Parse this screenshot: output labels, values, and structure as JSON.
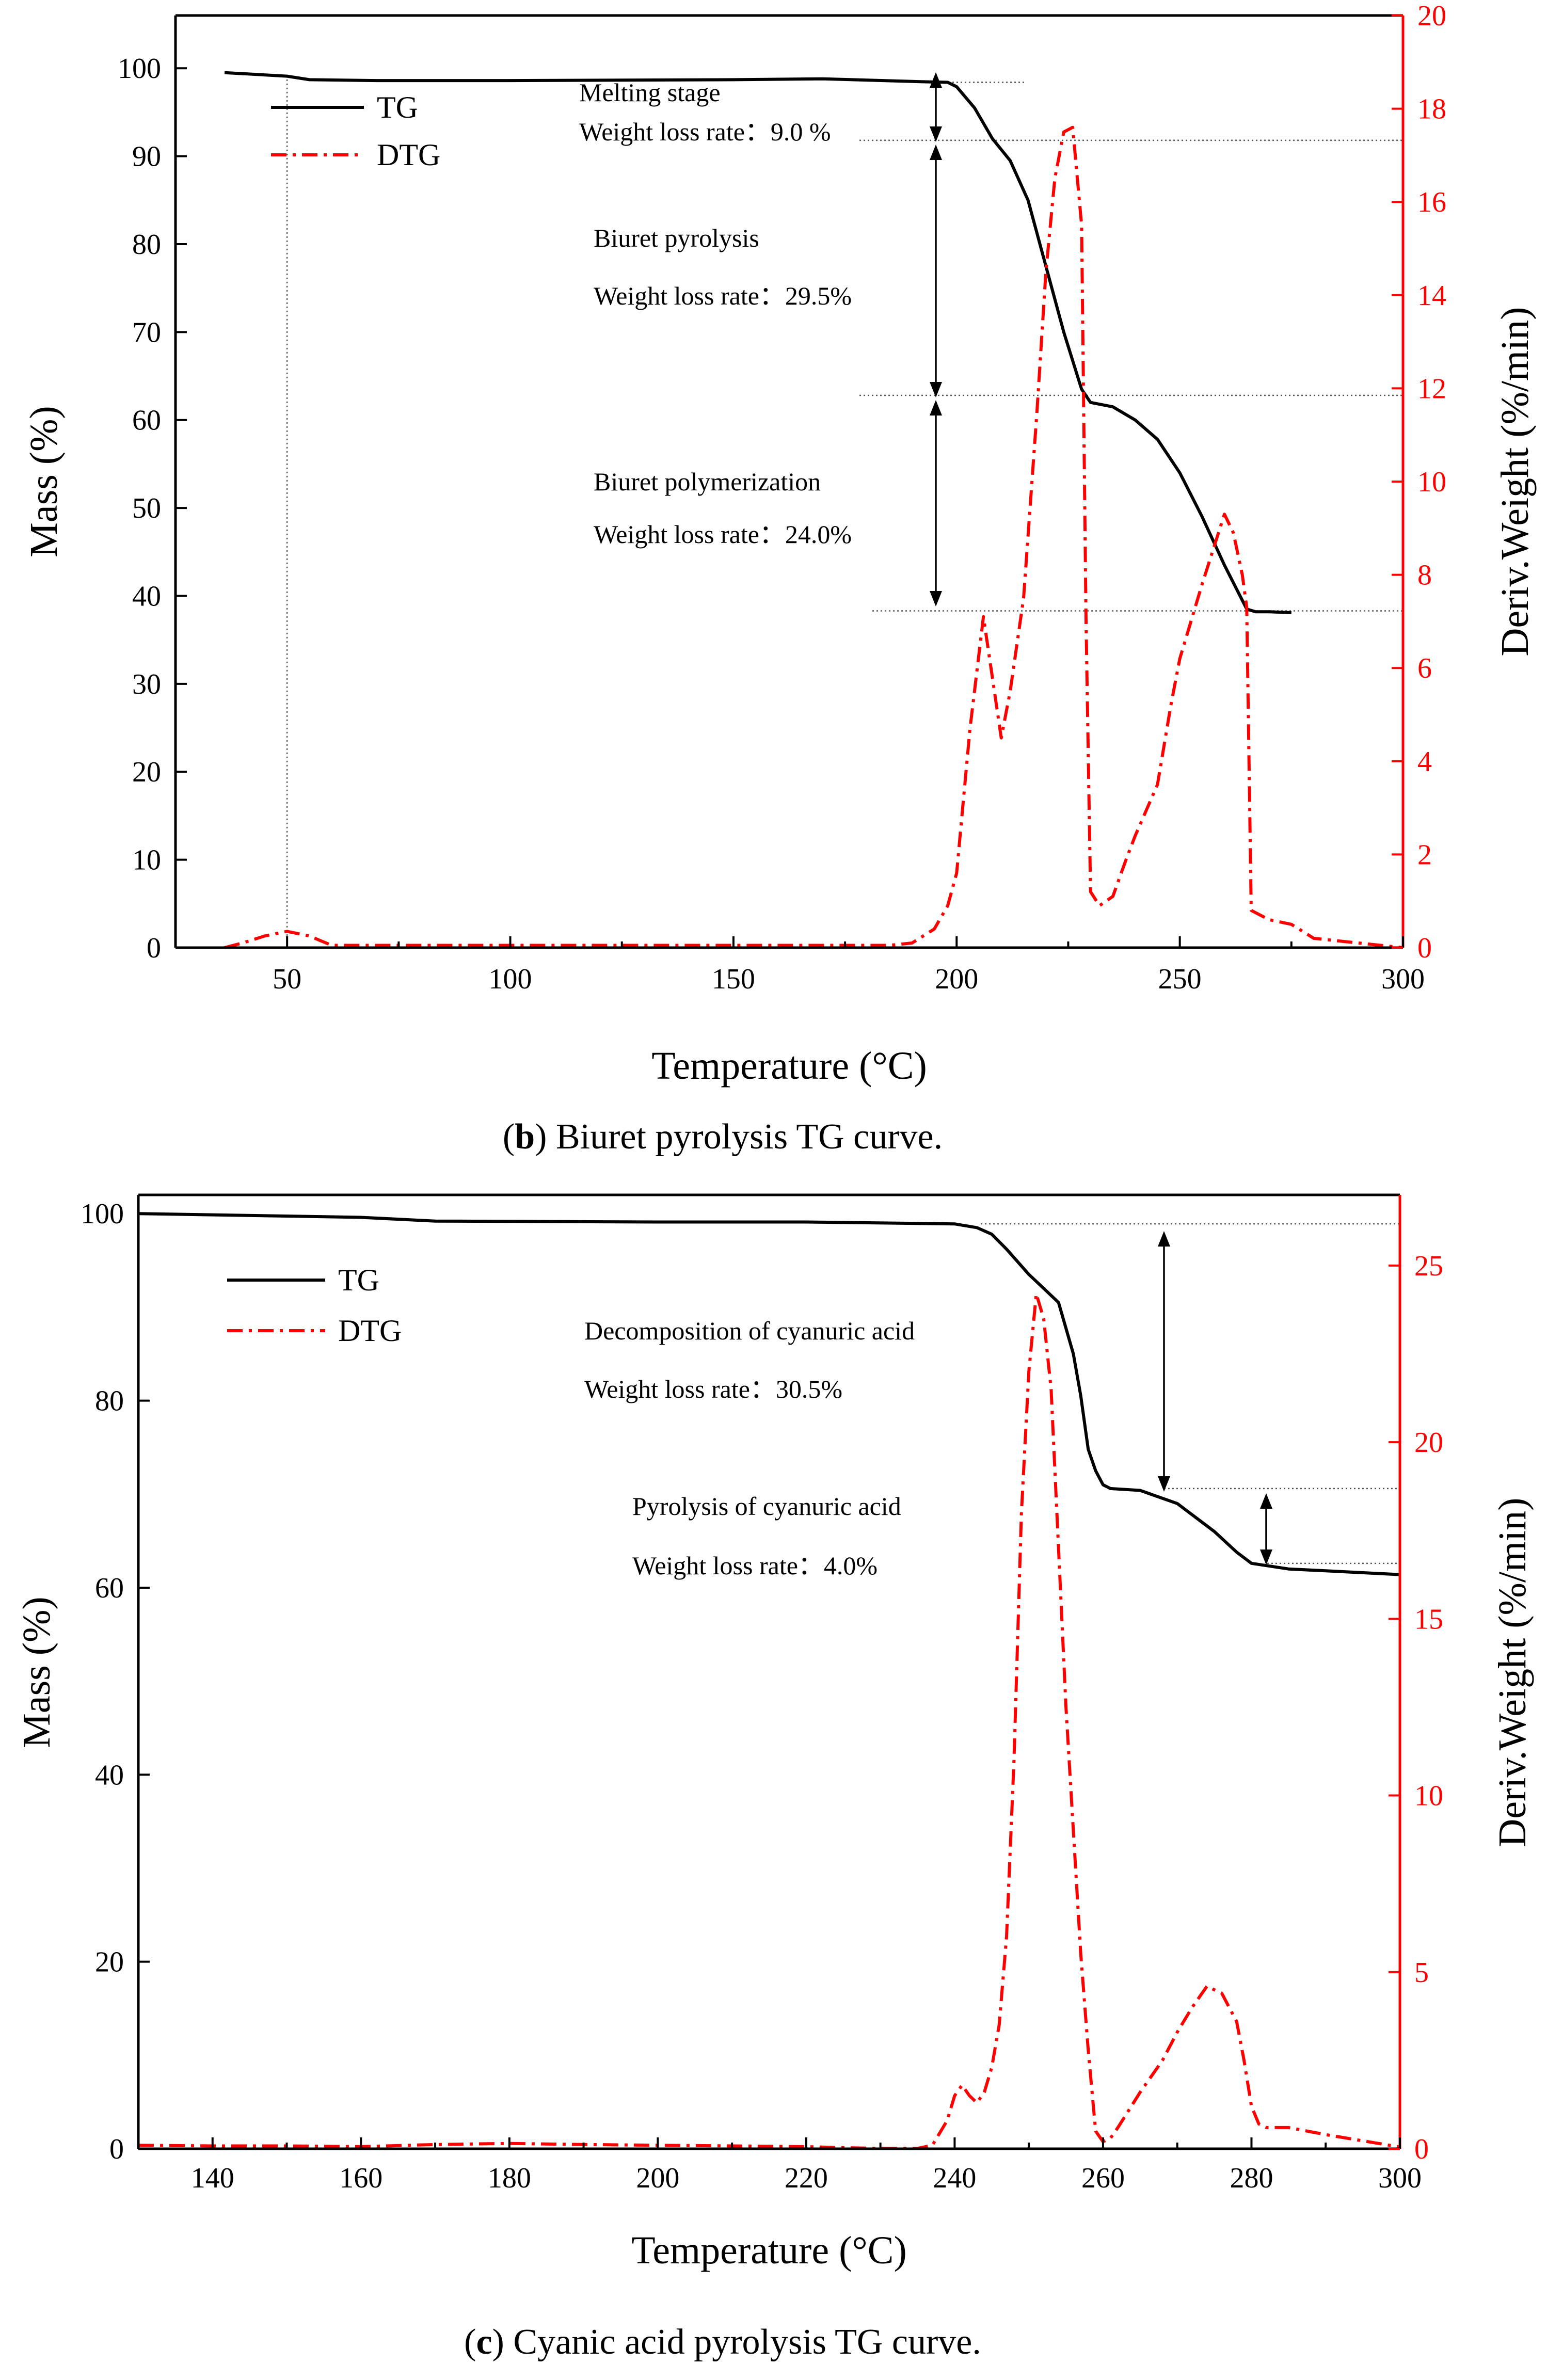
{
  "chart_data": [
    {
      "type": "line",
      "panel": "b",
      "caption_label": "b",
      "caption_text": ") Biuret pyrolysis TG curve.",
      "xlabel": "Temperature (°C)",
      "ylabel": "Mass (%)",
      "y2label": "Deriv.Weight (%/min)",
      "xlim": [
        25,
        300
      ],
      "ylim": [
        0,
        106
      ],
      "y2lim": [
        0,
        20
      ],
      "xticks": [
        50,
        100,
        150,
        200,
        250,
        300
      ],
      "yticks": [
        0,
        10,
        20,
        30,
        40,
        50,
        60,
        70,
        80,
        90,
        100
      ],
      "y2ticks": [
        0,
        2,
        4,
        6,
        8,
        10,
        12,
        14,
        16,
        18,
        20
      ],
      "legend": [
        "TG",
        "DTG"
      ],
      "series": [
        {
          "name": "TG",
          "axis": "left",
          "color": "#000000",
          "x": [
            36,
            50,
            55,
            70,
            100,
            150,
            170,
            190,
            198,
            200,
            204,
            208,
            212,
            216,
            220,
            224,
            228,
            230,
            235,
            240,
            245,
            250,
            255,
            260,
            265,
            267,
            270,
            275
          ],
          "y": [
            99.5,
            99.1,
            98.7,
            98.6,
            98.6,
            98.7,
            98.8,
            98.5,
            98.4,
            97.9,
            95.5,
            92,
            89.5,
            85,
            77.5,
            70,
            63.5,
            62,
            61.5,
            60,
            57.8,
            54,
            49,
            43.5,
            38.5,
            38.2,
            38.2,
            38.1
          ]
        },
        {
          "name": "DTG",
          "axis": "right",
          "color": "#ff0000",
          "x": [
            36,
            40,
            45,
            50,
            55,
            60,
            80,
            100,
            150,
            185,
            190,
            195,
            198,
            200,
            203,
            206,
            208,
            210,
            212,
            215,
            218,
            220,
            222,
            224,
            226,
            228,
            229,
            230,
            232,
            235,
            238,
            240,
            245,
            248,
            250,
            255,
            258,
            260,
            262,
            264,
            265,
            266,
            268,
            270,
            275,
            280,
            290,
            300
          ],
          "y": [
            0,
            0.1,
            0.25,
            0.35,
            0.25,
            0.05,
            0.05,
            0.05,
            0.05,
            0.05,
            0.1,
            0.4,
            0.9,
            1.6,
            4.7,
            7.1,
            5.8,
            4.5,
            5.5,
            7.5,
            11.5,
            14.5,
            16.5,
            17.5,
            17.6,
            15.5,
            7,
            1.2,
            0.9,
            1.1,
            1.9,
            2.4,
            3.5,
            5.2,
            6.2,
            7.8,
            8.7,
            9.3,
            8.9,
            8.0,
            7.3,
            0.8,
            0.7,
            0.6,
            0.5,
            0.2,
            0.1,
            0
          ]
        }
      ],
      "annotations": [
        {
          "title": "Melting stage",
          "rate": "Weight loss rate：9.0 %"
        },
        {
          "title": "Biuret pyrolysis",
          "rate": "Weight loss rate：29.5%"
        },
        {
          "title": "Biuret polymerization",
          "rate": "Weight loss rate：24.0%"
        }
      ]
    },
    {
      "type": "line",
      "panel": "c",
      "caption_label": "c",
      "caption_text": ") Cyanic acid pyrolysis TG curve.",
      "xlabel": "Temperature (°C)",
      "ylabel": "Mass (%)",
      "y2label": "Deriv.Weight (%/min)",
      "xlim": [
        130,
        300
      ],
      "ylim": [
        0,
        102
      ],
      "y2lim": [
        0,
        27
      ],
      "xticks": [
        140,
        160,
        180,
        200,
        220,
        240,
        260,
        280,
        300
      ],
      "yticks": [
        0,
        20,
        40,
        60,
        80,
        100
      ],
      "y2ticks": [
        0,
        5,
        10,
        15,
        20,
        25
      ],
      "legend": [
        "TG",
        "DTG"
      ],
      "series": [
        {
          "name": "TG",
          "axis": "left",
          "color": "#000000",
          "x": [
            130,
            160,
            170,
            200,
            220,
            240,
            243,
            245,
            247,
            250,
            254,
            256,
            257,
            258,
            259,
            260,
            261,
            265,
            270,
            275,
            278,
            280,
            285,
            290,
            300
          ],
          "y": [
            100,
            99.6,
            99.2,
            99.1,
            99.1,
            98.9,
            98.5,
            97.8,
            96.2,
            93.5,
            90.5,
            85,
            80.5,
            74.8,
            72.5,
            71,
            70.6,
            70.4,
            69,
            66,
            63.8,
            62.6,
            62,
            61.8,
            61.4
          ]
        },
        {
          "name": "DTG",
          "axis": "right",
          "color": "#ff0000",
          "x": [
            130,
            140,
            150,
            160,
            170,
            180,
            190,
            200,
            210,
            220,
            225,
            230,
            235,
            237,
            239,
            240,
            241,
            242,
            243,
            244,
            245,
            246,
            247,
            248,
            249,
            250,
            251,
            252,
            253,
            254,
            255,
            256,
            257,
            258,
            259,
            260,
            261,
            262,
            265,
            268,
            270,
            272,
            274,
            276,
            278,
            279,
            280,
            281,
            282,
            285,
            290,
            300
          ],
          "y": [
            0.1,
            0.08,
            0.08,
            0.06,
            0.12,
            0.15,
            0.12,
            0.1,
            0.08,
            0.06,
            0.03,
            0.01,
            0.01,
            0.1,
            0.8,
            1.5,
            1.8,
            1.5,
            1.3,
            1.6,
            2.3,
            3.5,
            6,
            11,
            18,
            22,
            24.2,
            23.5,
            21.5,
            17,
            12.5,
            9,
            5.5,
            2.8,
            0.5,
            0.2,
            0.3,
            0.6,
            1.6,
            2.5,
            3.3,
            4,
            4.6,
            4.4,
            3.6,
            2.5,
            1.2,
            0.7,
            0.6,
            0.6,
            0.4,
            0.05
          ]
        }
      ],
      "annotations": [
        {
          "title": "Decomposition of cyanuric acid",
          "rate": "Weight loss rate：30.5%"
        },
        {
          "title": "Pyrolysis of cyanuric acid",
          "rate": "Weight loss rate：4.0%"
        }
      ]
    }
  ]
}
